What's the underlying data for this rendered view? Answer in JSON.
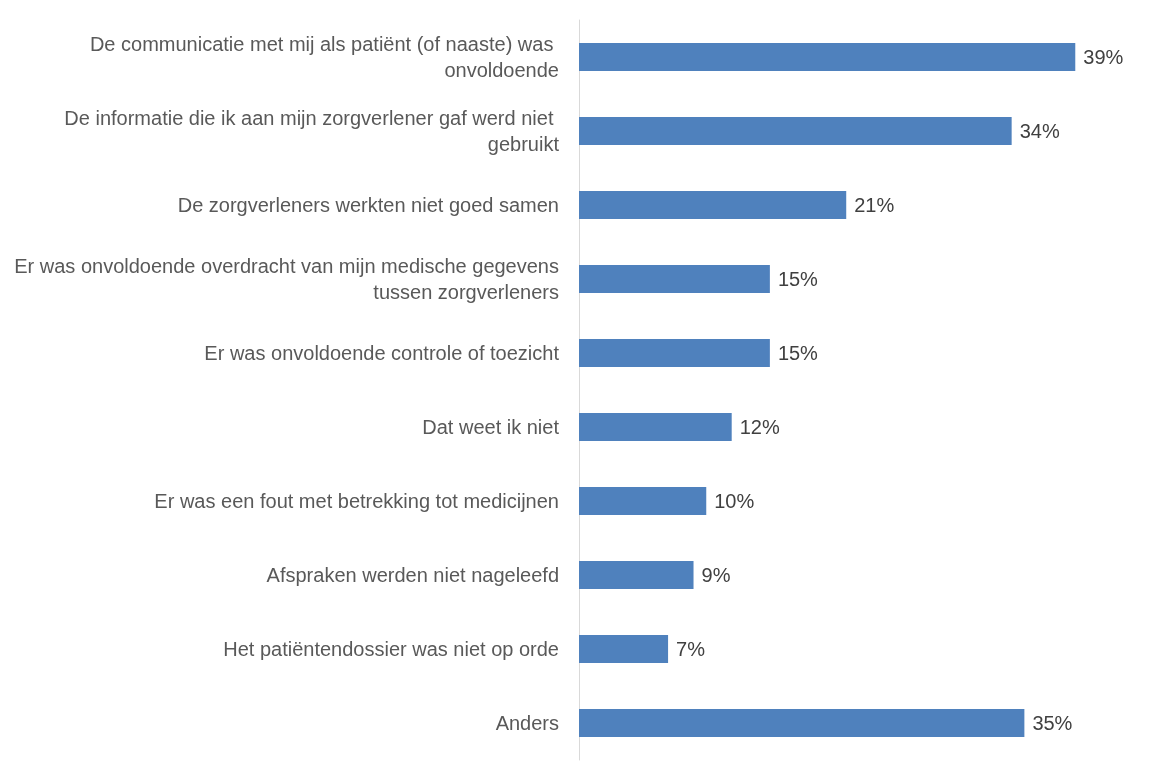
{
  "chart_data": {
    "type": "bar",
    "orientation": "horizontal",
    "categories": [
      "De communicatie met mij als patiënt (of naaste) was onvoldoende",
      "De informatie die ik aan mijn zorgverlener gaf werd niet gebruikt",
      "De zorgverleners werkten niet goed samen",
      "Er was onvoldoende overdracht van mijn medische gegevens tussen zorgverleners",
      "Er was onvoldoende controle of toezicht",
      "Dat weet ik niet",
      "Er was een fout met betrekking tot medicijnen",
      "Afspraken werden niet nageleefd",
      "Het patiëntendossier was niet op orde",
      "Anders"
    ],
    "values": [
      39,
      34,
      21,
      15,
      15,
      12,
      10,
      9,
      7,
      35
    ],
    "value_labels": [
      "39%",
      "34%",
      "21%",
      "15%",
      "15%",
      "12%",
      "10%",
      "9%",
      "7%",
      "35%"
    ],
    "color": "#4f81bd"
  }
}
